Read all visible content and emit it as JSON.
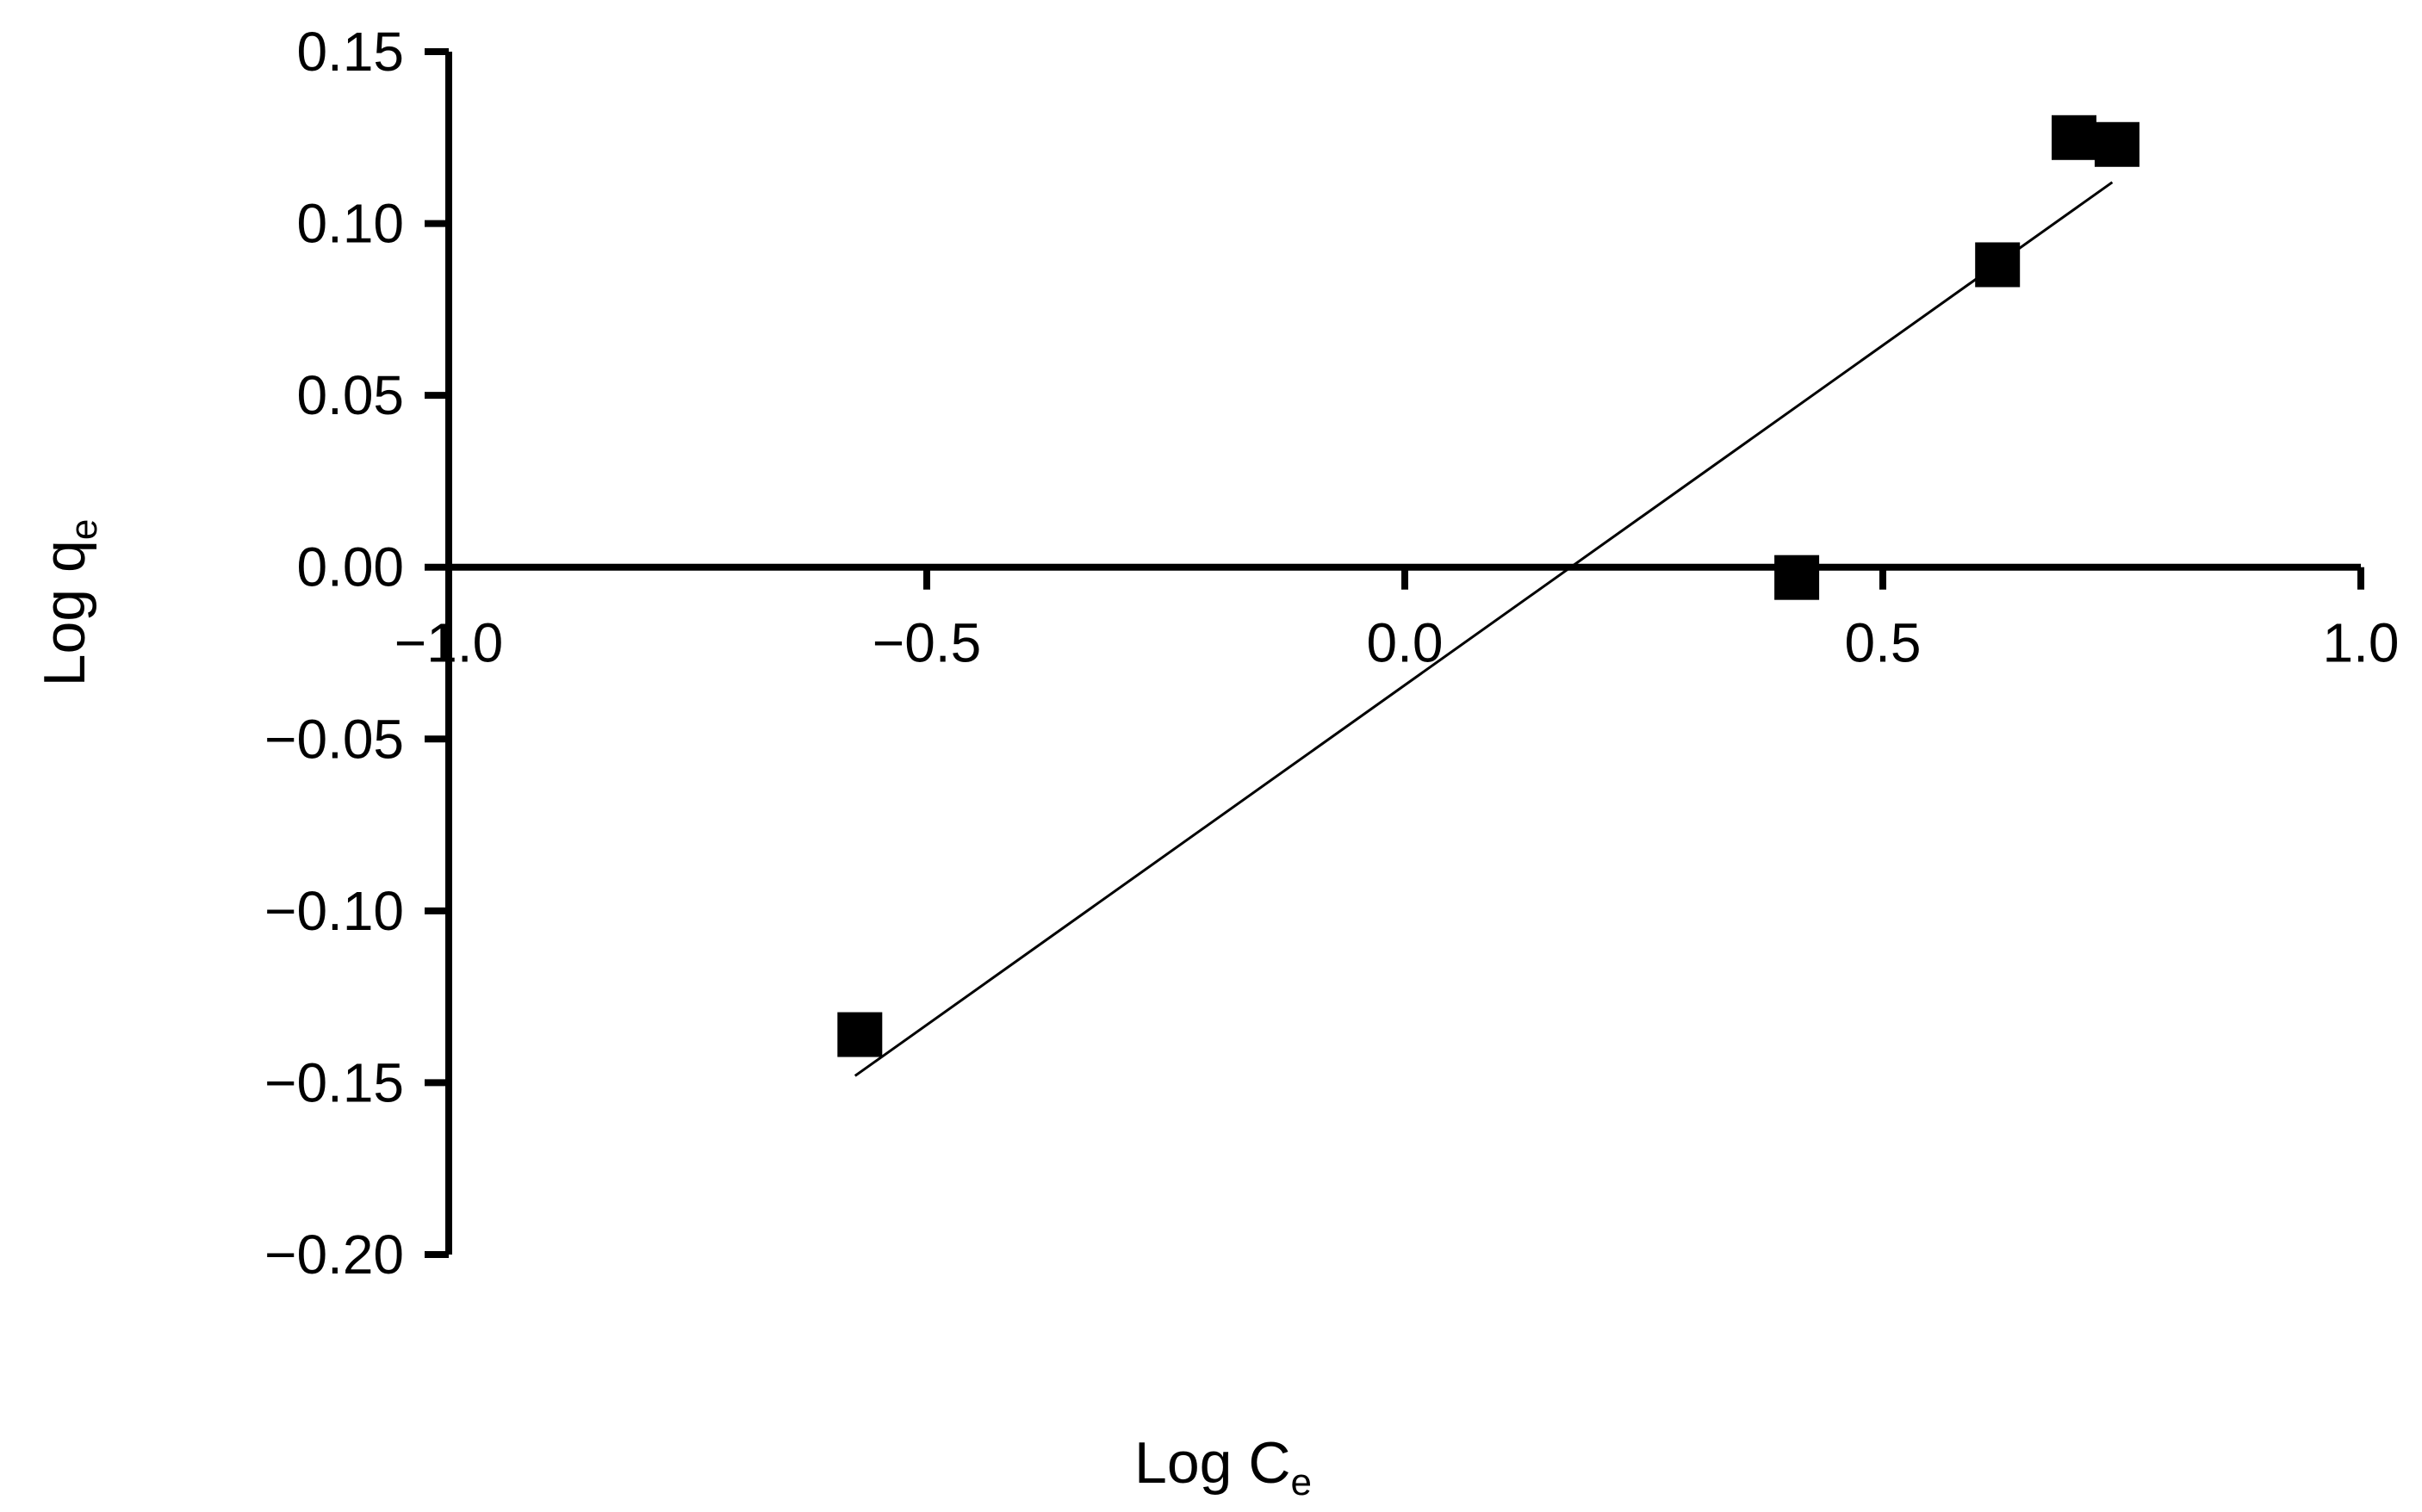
{
  "chart_data": {
    "type": "scatter",
    "xlabel": {
      "main": "Log C",
      "sub": "e"
    },
    "ylabel": {
      "main": "Log q",
      "sub": "e"
    },
    "xlim": [
      -1.0,
      1.0
    ],
    "ylim": [
      -0.2,
      0.15
    ],
    "xticks": [
      {
        "value": -1.0,
        "label": "−1.0"
      },
      {
        "value": -0.5,
        "label": "−0.5"
      },
      {
        "value": 0.0,
        "label": "0.0"
      },
      {
        "value": 0.5,
        "label": "0.5"
      },
      {
        "value": 1.0,
        "label": "1.0"
      }
    ],
    "yticks": [
      {
        "value": 0.15,
        "label": "0.15"
      },
      {
        "value": 0.1,
        "label": "0.10"
      },
      {
        "value": 0.05,
        "label": "0.05"
      },
      {
        "value": 0.0,
        "label": "0.00"
      },
      {
        "value": -0.05,
        "label": "−0.05"
      },
      {
        "value": -0.1,
        "label": "−0.10"
      },
      {
        "value": -0.15,
        "label": "−0.15"
      },
      {
        "value": -0.2,
        "label": "−0.20"
      }
    ],
    "grid": false,
    "marker": "square",
    "marker_color": "#000000",
    "points": [
      {
        "x": -0.57,
        "y": -0.136
      },
      {
        "x": 0.41,
        "y": -0.003
      },
      {
        "x": 0.62,
        "y": 0.088
      },
      {
        "x": 0.7,
        "y": 0.125
      },
      {
        "x": 0.745,
        "y": 0.123
      }
    ],
    "trendline": {
      "from": {
        "x": -0.575,
        "y": -0.148
      },
      "to": {
        "x": 0.74,
        "y": 0.112
      },
      "color": "#000000"
    }
  }
}
